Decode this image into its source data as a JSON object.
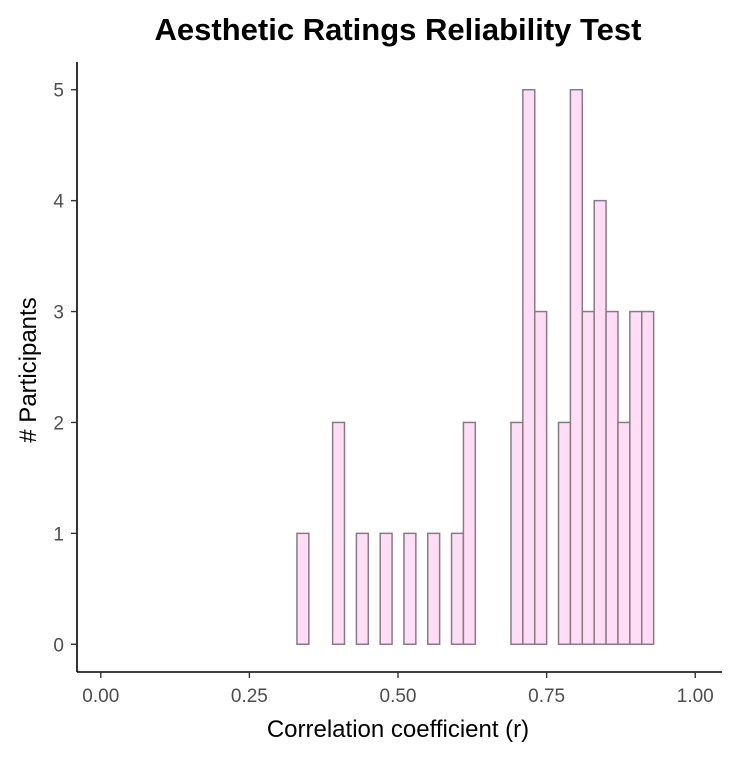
{
  "chart_data": {
    "type": "bar",
    "title": "Aesthetic Ratings Reliability Test",
    "xlabel": "Correlation coefficient (r)",
    "ylabel": "# Participants",
    "xlim": [
      -0.04,
      1.045
    ],
    "ylim": [
      -0.25,
      5.25
    ],
    "x_ticks": [
      0,
      0.25,
      0.5,
      0.75,
      1
    ],
    "x_tick_labels": [
      "0.00",
      "0.25",
      "0.50",
      "0.75",
      "1.00"
    ],
    "y_ticks": [
      0,
      1,
      2,
      3,
      4,
      5
    ],
    "y_tick_labels": [
      "0",
      "1",
      "2",
      "3",
      "4",
      "5"
    ],
    "grid": false,
    "bin_width": 0.02,
    "bins": [
      {
        "start": 0.33,
        "end": 0.35,
        "count": 1
      },
      {
        "start": 0.35,
        "end": 0.37,
        "count": 0
      },
      {
        "start": 0.37,
        "end": 0.39,
        "count": 0
      },
      {
        "start": 0.39,
        "end": 0.41,
        "count": 2
      },
      {
        "start": 0.41,
        "end": 0.43,
        "count": 0
      },
      {
        "start": 0.43,
        "end": 0.45,
        "count": 1
      },
      {
        "start": 0.45,
        "end": 0.47,
        "count": 0
      },
      {
        "start": 0.47,
        "end": 0.49,
        "count": 1
      },
      {
        "start": 0.49,
        "end": 0.51,
        "count": 0
      },
      {
        "start": 0.51,
        "end": 0.53,
        "count": 1
      },
      {
        "start": 0.53,
        "end": 0.55,
        "count": 0
      },
      {
        "start": 0.55,
        "end": 0.57,
        "count": 1
      },
      {
        "start": 0.57,
        "end": 0.59,
        "count": 0
      },
      {
        "start": 0.59,
        "end": 0.61,
        "count": 1
      },
      {
        "start": 0.61,
        "end": 0.63,
        "count": 2
      },
      {
        "start": 0.63,
        "end": 0.65,
        "count": 0
      },
      {
        "start": 0.65,
        "end": 0.67,
        "count": 0
      },
      {
        "start": 0.67,
        "end": 0.69,
        "count": 0
      },
      {
        "start": 0.69,
        "end": 0.71,
        "count": 2
      },
      {
        "start": 0.71,
        "end": 0.73,
        "count": 5
      },
      {
        "start": 0.73,
        "end": 0.75,
        "count": 3
      },
      {
        "start": 0.75,
        "end": 0.77,
        "count": 0
      },
      {
        "start": 0.77,
        "end": 0.79,
        "count": 2
      },
      {
        "start": 0.79,
        "end": 0.81,
        "count": 5
      },
      {
        "start": 0.81,
        "end": 0.83,
        "count": 3
      },
      {
        "start": 0.83,
        "end": 0.85,
        "count": 4
      },
      {
        "start": 0.85,
        "end": 0.87,
        "count": 3
      },
      {
        "start": 0.87,
        "end": 0.89,
        "count": 2
      },
      {
        "start": 0.89,
        "end": 0.91,
        "count": 3
      },
      {
        "start": 0.91,
        "end": 0.93,
        "count": 3
      }
    ],
    "colors": {
      "bar_fill": "#ffddf7",
      "bar_outline": "#8a7a82"
    }
  }
}
